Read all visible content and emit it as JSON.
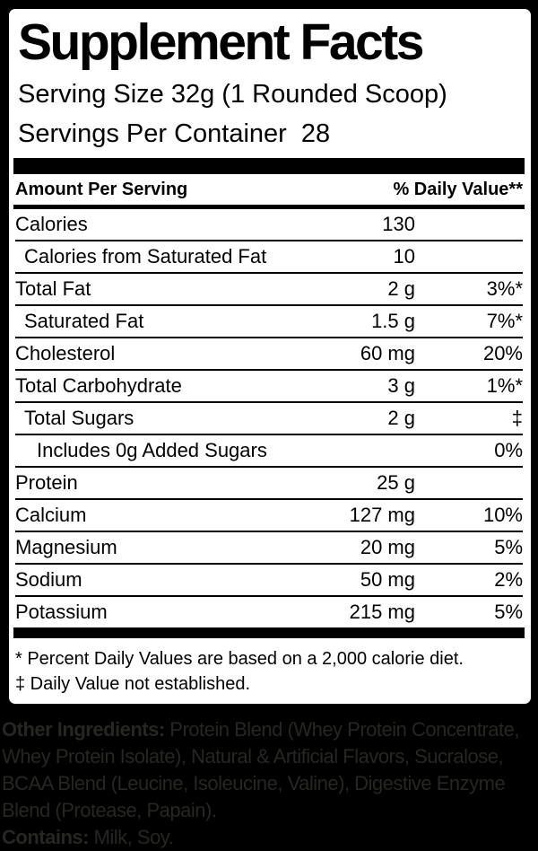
{
  "title": "Supplement Facts",
  "serving": {
    "size_line": "Serving Size 32g (1 Rounded Scoop)",
    "per_container_line": "Servings Per Container  28"
  },
  "table": {
    "header": {
      "left": "Amount Per Serving",
      "right": "% Daily Value**"
    },
    "rows": [
      {
        "name": "Calories",
        "indent": 0,
        "amount": "130",
        "dv": ""
      },
      {
        "name": "Calories from Saturated Fat",
        "indent": 1,
        "amount": "10",
        "dv": ""
      },
      {
        "name": "Total Fat",
        "indent": 0,
        "amount": "2 g",
        "dv": "3%*"
      },
      {
        "name": "Saturated Fat",
        "indent": 1,
        "amount": "1.5 g",
        "dv": "7%*"
      },
      {
        "name": "Cholesterol",
        "indent": 0,
        "amount": "60 mg",
        "dv": "20%"
      },
      {
        "name": "Total Carbohydrate",
        "indent": 0,
        "amount": "3 g",
        "dv": "1%*"
      },
      {
        "name": "Total Sugars",
        "indent": 1,
        "amount": "2 g",
        "dv": "‡"
      },
      {
        "name": "Includes 0g Added Sugars",
        "indent": 2,
        "amount": "",
        "dv": "0%"
      },
      {
        "name": "Protein",
        "indent": 0,
        "amount": "25 g",
        "dv": ""
      },
      {
        "name": "Calcium",
        "indent": 0,
        "amount": "127 mg",
        "dv": "10%"
      },
      {
        "name": "Magnesium",
        "indent": 0,
        "amount": "20 mg",
        "dv": "5%"
      },
      {
        "name": "Sodium",
        "indent": 0,
        "amount": "50 mg",
        "dv": "2%"
      },
      {
        "name": "Potassium",
        "indent": 0,
        "amount": "215 mg",
        "dv": "5%"
      }
    ]
  },
  "footnotes": [
    "* Percent Daily Values are based on a 2,000 calorie diet.",
    "‡ Daily Value not established."
  ],
  "bottom": {
    "lines": [
      {
        "bold": "Other Ingredients:",
        "text": " Protein Blend (Whey Protein Concentrate,"
      },
      {
        "bold": "",
        "text": "Whey Protein Isolate), Natural & Artificial Flavors, Sucralose,"
      },
      {
        "bold": "",
        "text": "BCAA Blend (Leucine, Isoleucine, Valine), Digestive Enzyme"
      },
      {
        "bold": "",
        "text": "Blend (Protease, Papain)."
      },
      {
        "bold": "Contains:",
        "text": " Milk, Soy."
      }
    ]
  },
  "colors": {
    "background": "#000000",
    "label_bg": "#ffffff",
    "text": "#000000",
    "bottom_text": "#262622"
  }
}
